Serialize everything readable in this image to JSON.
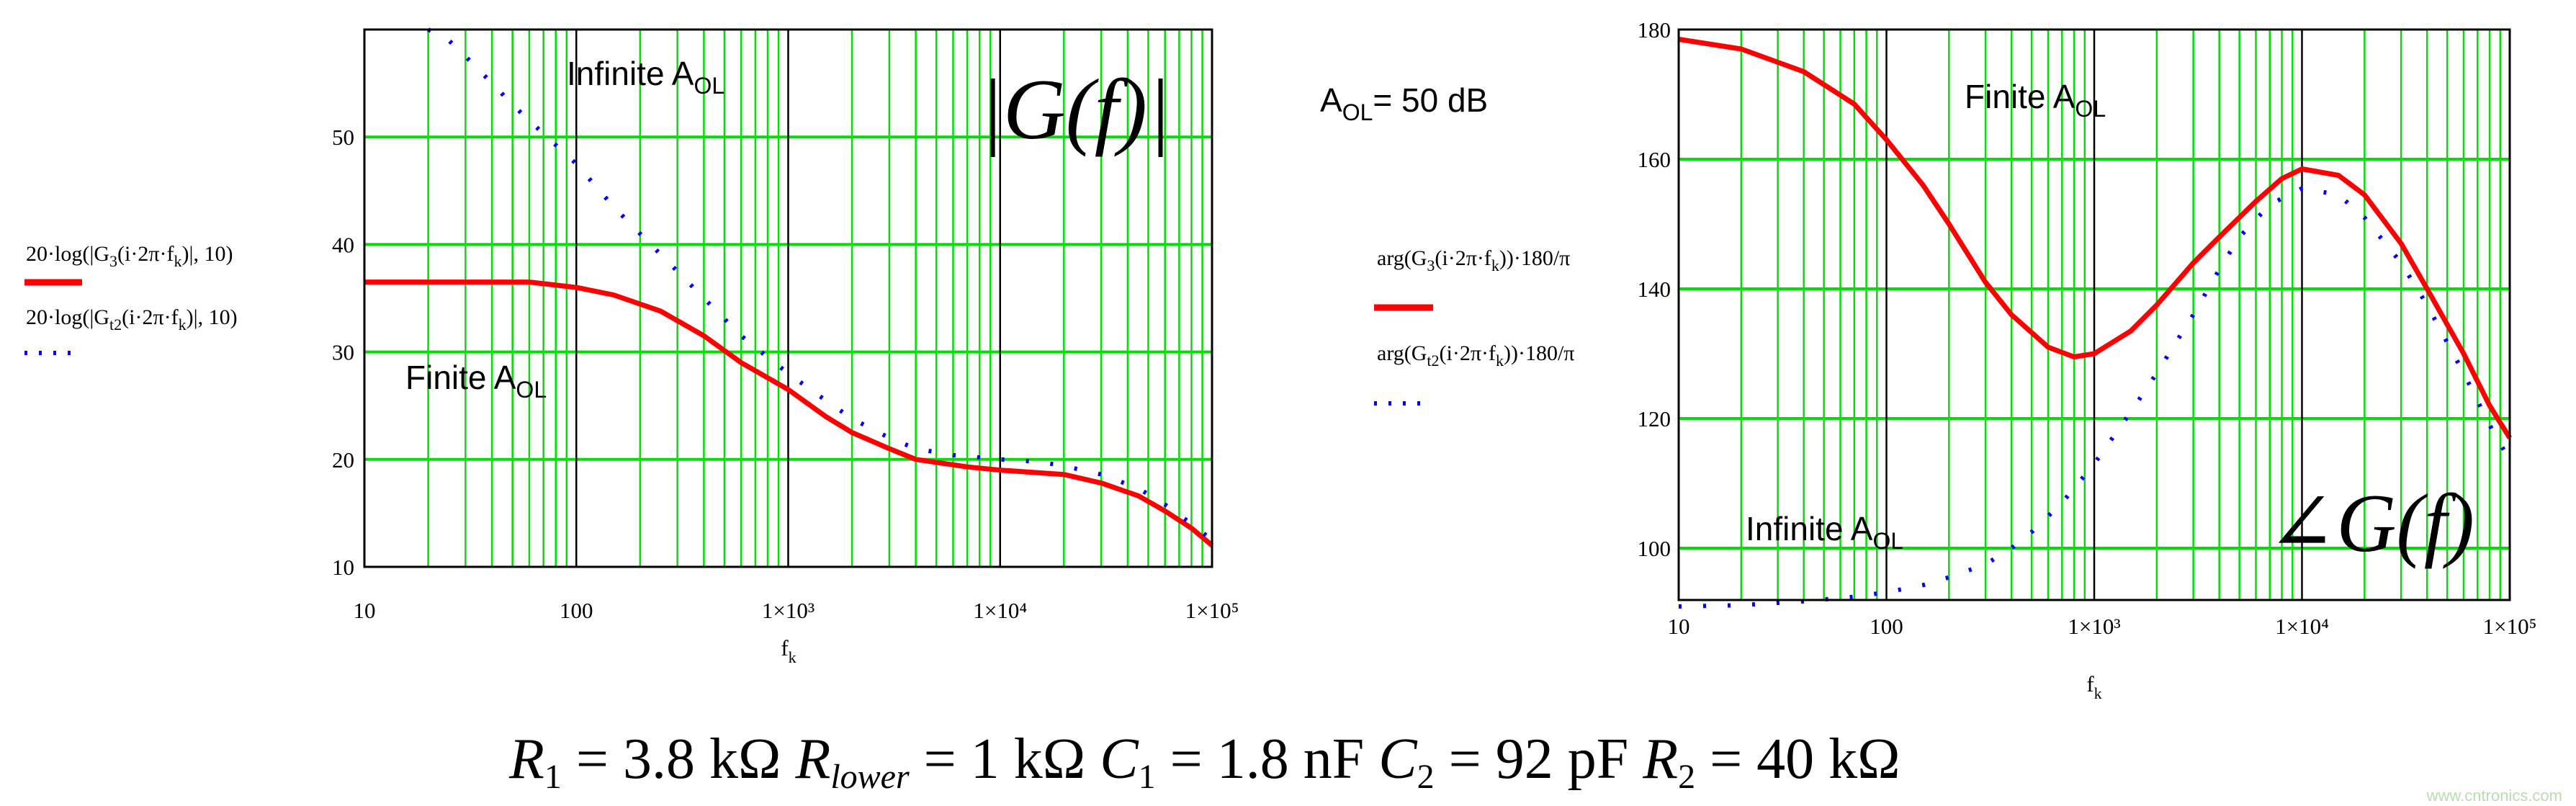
{
  "colors": {
    "grid_minor": "#00e000",
    "grid_decade": "#000000",
    "series_finite": "#ff0000",
    "series_infinite": "#0000ff",
    "watermark": "#b9dcb0"
  },
  "annotations": {
    "aol_value": {
      "main": "A",
      "sub": "OL",
      "rest": "= 50 dB"
    },
    "equation": {
      "r1": "R",
      "r1_sub": "1",
      "r1_val": " = 3.8 kΩ ",
      "rl": "R",
      "rl_sub": "lower",
      "rl_val": " = 1 kΩ ",
      "c1": "C",
      "c1_sub": "1",
      "c1_val": " = 1.8 nF ",
      "c2": "C",
      "c2_sub": "2",
      "c2_val": " = 92 pF ",
      "r2": "R",
      "r2_sub": "2",
      "r2_val": " = 40 kΩ"
    },
    "watermark": "www.cntronics.com"
  },
  "chart_data": [
    {
      "type": "line",
      "title": "|G(f)|",
      "xlabel": "f",
      "xlabel_sub": "k",
      "xscale": "log",
      "xlim": [
        10,
        100000
      ],
      "ylim": [
        10,
        60
      ],
      "grid": true,
      "xticks": [
        10,
        100,
        1000,
        10000,
        100000
      ],
      "xtick_labels": [
        "10",
        "100",
        "1×10³",
        "1×10⁴",
        "1×10⁵"
      ],
      "yticks": [
        10,
        20,
        30,
        40,
        50
      ],
      "ytick_labels": [
        "10",
        "20",
        "30",
        "40",
        "50"
      ],
      "annotations": [
        {
          "main": "Infinite A",
          "sub": "OL"
        },
        {
          "main": "Finite A",
          "sub": "OL"
        }
      ],
      "legend_position": "left",
      "series": [
        {
          "legend": {
            "pre": "20·log(|G",
            "s1": "3",
            "mid": "(i·2π·f",
            "s2": "k",
            "post": ")|, 10)"
          },
          "style": "solid",
          "x": [
            10,
            60,
            100,
            150,
            250,
            400,
            600,
            1000,
            1500,
            2000,
            3000,
            4000,
            7000,
            10000,
            20000,
            30000,
            45000,
            60000,
            80000,
            100000
          ],
          "y": [
            36.5,
            36.5,
            36,
            35.3,
            33.8,
            31.5,
            29,
            26.5,
            24,
            22.5,
            21,
            20,
            19.3,
            19,
            18.6,
            17.8,
            16.6,
            15.2,
            13.6,
            12
          ]
        },
        {
          "legend": {
            "pre": "20·log(|G",
            "s1": "t2",
            "mid": "(i·2π·f",
            "s2": "k",
            "post": ")|, 10)"
          },
          "style": "dotted",
          "x": [
            20,
            25,
            30,
            40,
            50,
            70,
            100,
            150,
            200,
            300,
            400,
            600,
            800,
            1000,
            1500,
            2000,
            3000,
            4000,
            6000,
            10000,
            15000,
            20000,
            30000,
            45000,
            60000,
            80000,
            100000
          ],
          "y": [
            60,
            59,
            57.5,
            55,
            53,
            50.3,
            47.5,
            43.5,
            41,
            37.5,
            35,
            31.5,
            29.5,
            28,
            25.5,
            23.8,
            22,
            21,
            20.4,
            20,
            19.8,
            19.4,
            18.6,
            17.3,
            15.8,
            14,
            12.5
          ]
        }
      ]
    },
    {
      "type": "line",
      "title": "∠G(f)",
      "xlabel": "f",
      "xlabel_sub": "k",
      "xscale": "log",
      "xlim": [
        10,
        100000
      ],
      "ylim": [
        92,
        180
      ],
      "grid": true,
      "xticks": [
        10,
        100,
        1000,
        10000,
        100000
      ],
      "xtick_labels": [
        "10",
        "100",
        "1×10³",
        "1×10⁴",
        "1×10⁵"
      ],
      "yticks": [
        100,
        120,
        140,
        160,
        180
      ],
      "ytick_labels": [
        "100",
        "120",
        "140",
        "160",
        "180"
      ],
      "annotations": [
        {
          "main": "Finite A",
          "sub": "OL"
        },
        {
          "main": "Infinite A",
          "sub": "OL"
        }
      ],
      "legend_position": "left",
      "series": [
        {
          "legend": {
            "pre": "arg(G",
            "s1": "3",
            "mid": "(i·2π·f",
            "s2": "k",
            "post": "))·180/π"
          },
          "style": "solid",
          "x": [
            10,
            20,
            40,
            70,
            100,
            150,
            200,
            300,
            400,
            600,
            800,
            1000,
            1500,
            2000,
            3000,
            4000,
            6000,
            8000,
            10000,
            15000,
            20000,
            30000,
            40000,
            60000,
            80000,
            100000
          ],
          "y": [
            178.5,
            177,
            173.5,
            168.5,
            163,
            156,
            150,
            141,
            136,
            131,
            129.5,
            130,
            133.5,
            137.5,
            144,
            148,
            153.5,
            157,
            158.5,
            157.5,
            154.5,
            147,
            140,
            130,
            122,
            117
          ]
        },
        {
          "legend": {
            "pre": "arg(G",
            "s1": "t2",
            "mid": "(i·2π·f",
            "s2": "k",
            "post": "))·180/π"
          },
          "style": "dotted",
          "x": [
            10,
            20,
            40,
            70,
            100,
            150,
            200,
            300,
            400,
            500,
            700,
            1000,
            1500,
            2000,
            3000,
            4000,
            5000,
            7000,
            10000,
            15000,
            20000,
            30000,
            40000,
            60000,
            80000,
            100000
          ],
          "y": [
            91,
            91.2,
            91.8,
            92.5,
            93.2,
            94.3,
            95.5,
            97.5,
            100,
            102.5,
            107,
            113,
            121,
            127,
            136,
            143,
            148,
            153,
            155.5,
            154.5,
            151,
            144,
            137.5,
            127,
            119,
            113.5
          ]
        }
      ]
    }
  ]
}
